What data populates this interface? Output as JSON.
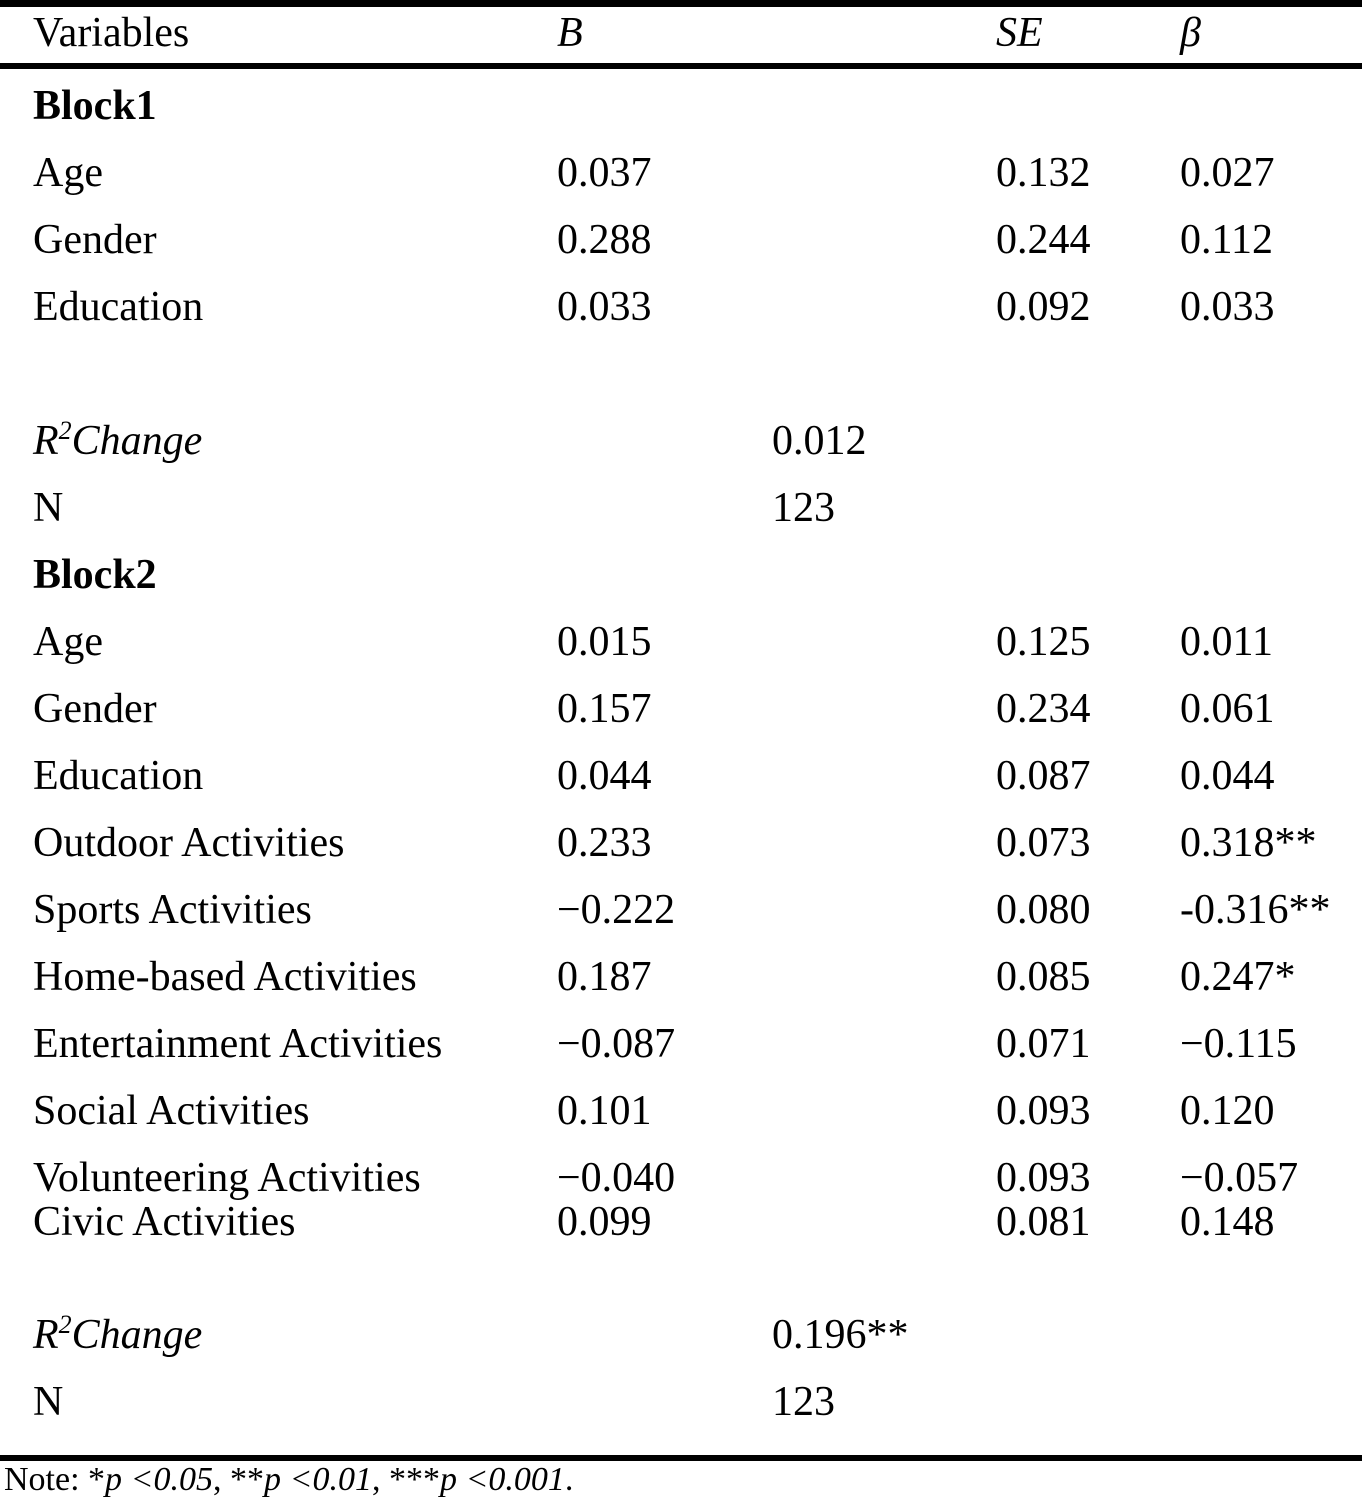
{
  "header": {
    "variables": "Variables",
    "b": "B",
    "se": "SE",
    "beta": "β"
  },
  "block1": {
    "title": "Block1",
    "rows": [
      {
        "variable": "Age",
        "b": "0.037",
        "se": "0.132",
        "beta": "0.027"
      },
      {
        "variable": "Gender",
        "b": "0.288",
        "se": "0.244",
        "beta": "0.112"
      },
      {
        "variable": "Education",
        "b": "0.033",
        "se": "0.092",
        "beta": "0.033"
      }
    ],
    "r2_change": {
      "base": "R",
      "sup": "2",
      "rest": "Change",
      "value": "0.012"
    },
    "n": {
      "label": "N",
      "value": "123"
    }
  },
  "block2": {
    "title": "Block2",
    "rows": [
      {
        "variable": "Age",
        "b": "0.015",
        "se": "0.125",
        "beta": "0.011"
      },
      {
        "variable": "Gender",
        "b": "0.157",
        "se": "0.234",
        "beta": "0.061"
      },
      {
        "variable": "Education",
        "b": "0.044",
        "se": "0.087",
        "beta": "0.044"
      },
      {
        "variable": "Outdoor Activities",
        "b": "0.233",
        "se": "0.073",
        "beta": "0.318**"
      },
      {
        "variable": "Sports Activities",
        "b": "−0.222",
        "se": "0.080",
        "beta": "-0.316**"
      },
      {
        "variable": "Home-based Activities",
        "b": "0.187",
        "se": "0.085",
        "beta": "0.247*"
      },
      {
        "variable": "Entertainment Activities",
        "b": "−0.087",
        "se": "0.071",
        "beta": "−0.115"
      },
      {
        "variable": "Social Activities",
        "b": "0.101",
        "se": "0.093",
        "beta": "0.120"
      },
      {
        "variable": "Volunteering Activities",
        "b": "−0.040",
        "se": "0.093",
        "beta": "−0.057"
      },
      {
        "variable": "Civic Activities",
        "b": "0.099",
        "se": "0.081",
        "beta": "0.148"
      }
    ],
    "r2_change": {
      "base": "R",
      "sup": "2",
      "rest": "Change",
      "value": "0.196**"
    },
    "n": {
      "label": "N",
      "value": "123"
    }
  },
  "note": {
    "segments": [
      "Note: *",
      "p <0.05",
      ", **",
      "p <0.01",
      ", ***",
      "p <0.001",
      "."
    ]
  }
}
